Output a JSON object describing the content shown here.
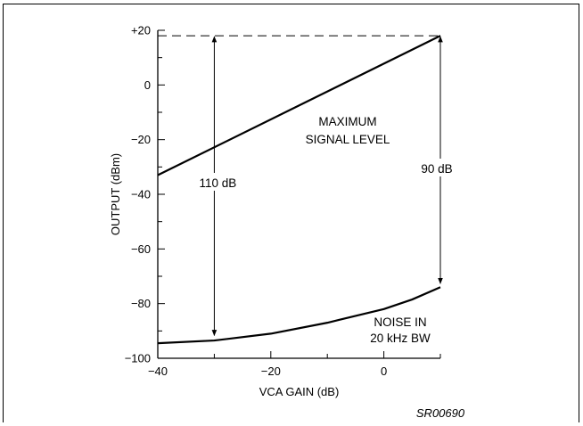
{
  "chart_data": {
    "type": "line",
    "xlabel": "VCA GAIN (dB)",
    "ylabel": "OUTPUT (dBm)",
    "xlim": [
      -40,
      10
    ],
    "ylim": [
      -100,
      20
    ],
    "x_ticks": [
      -40,
      -20,
      0
    ],
    "x_tick_labels": [
      "−40",
      "−20",
      "0"
    ],
    "y_ticks": [
      20,
      0,
      -20,
      -40,
      -60,
      -80,
      -100
    ],
    "y_tick_labels": [
      "+20",
      "0",
      "−20",
      "−40",
      "−60",
      "−80",
      "−100"
    ],
    "series": [
      {
        "name": "MAXIMUM SIGNAL LEVEL",
        "x": [
          -40,
          10
        ],
        "y": [
          -33,
          18
        ]
      },
      {
        "name": "NOISE IN 20 kHz BW",
        "x": [
          -40,
          -30,
          -20,
          -10,
          0,
          5,
          10
        ],
        "y": [
          -94.5,
          -93.5,
          -91,
          -87,
          -82,
          -78.5,
          -74
        ]
      }
    ],
    "reference_line": {
      "x": [
        -40,
        10
      ],
      "y": 18,
      "style": "dashed"
    },
    "annotations": [
      {
        "text": "110 dB",
        "x": -30,
        "from": 18,
        "to": -92
      },
      {
        "text": "90 dB",
        "x": 10,
        "from": 18,
        "to": -73
      }
    ],
    "series_labels": {
      "signal": [
        "MAXIMUM",
        "SIGNAL LEVEL"
      ],
      "noise": [
        "NOISE IN",
        "20 kHz BW"
      ]
    },
    "figure_code": "SR00690",
    "grid": false
  }
}
